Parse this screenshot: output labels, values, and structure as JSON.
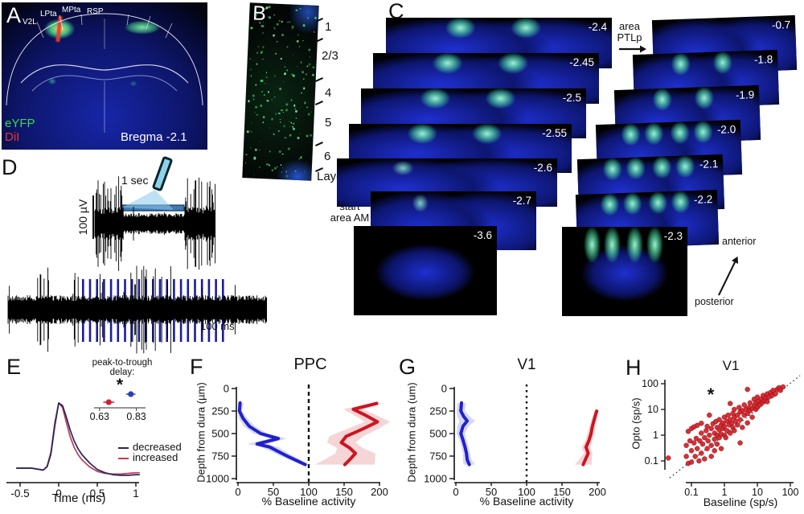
{
  "figure": {
    "panel_a": {
      "label": "A",
      "regions": [
        "V2L",
        "LPta",
        "MPta",
        "RSP"
      ],
      "legend": [
        {
          "text": "eYFP",
          "color": "#35d94f"
        },
        {
          "text": "DiI",
          "color": "#e8392e"
        }
      ],
      "caption": "Bregma -2.1"
    },
    "panel_b": {
      "label": "B",
      "layers": [
        "1",
        "2/3",
        "4",
        "5",
        "6"
      ],
      "axis_label": "Layer"
    },
    "panel_c": {
      "label": "C",
      "left_slices": [
        {
          "bregma": "-2.4",
          "signal": "strong"
        },
        {
          "bregma": "-2.45",
          "signal": "strong"
        },
        {
          "bregma": "-2.5",
          "signal": "strong"
        },
        {
          "bregma": "-2.55",
          "signal": "strong"
        },
        {
          "bregma": "-2.6",
          "signal": "weak"
        },
        {
          "bregma": "-2.7",
          "signal": "weak"
        },
        {
          "bregma": "-3.6",
          "signal": "none"
        }
      ],
      "right_slices": [
        {
          "bregma": "-0.7",
          "signal": "none"
        },
        {
          "bregma": "-1.8",
          "signal": "strong"
        },
        {
          "bregma": "-1.9",
          "signal": "strong"
        },
        {
          "bregma": "-2.0",
          "signal": "strong4"
        },
        {
          "bregma": "-2.1",
          "signal": "strong4"
        },
        {
          "bregma": "-2.2",
          "signal": "strong4"
        },
        {
          "bregma": "-2.3",
          "signal": "strong4"
        }
      ],
      "annotations": {
        "ptlp_line1": "area",
        "ptlp_line2": "PTLp",
        "am_line1": "start",
        "am_line2": "area AM",
        "anterior": "anterior",
        "posterior": "posterior"
      }
    },
    "panel_d": {
      "label": "D",
      "voltage_scalebar": "100 µV",
      "top_time_scalebar": "1 sec",
      "bottom_time_scalebar": "100 ms",
      "laser_pulse_count": 21,
      "laser_color": "#1c1c96"
    },
    "panel_e": {
      "label": "E"
    },
    "panel_f": {
      "label": "F"
    },
    "panel_g": {
      "label": "G"
    },
    "panel_h": {
      "label": "H"
    }
  },
  "chart_data": [
    {
      "id": "E",
      "type": "line",
      "xlabel": "Time (ms)",
      "xticks": [
        -0.5,
        0,
        0.5,
        1
      ],
      "series": [
        {
          "name": "decreased",
          "color": "#26265e",
          "t": [
            -0.55,
            -0.45,
            -0.35,
            -0.25,
            -0.2,
            -0.15,
            -0.1,
            -0.05,
            0,
            0.05,
            0.1,
            0.15,
            0.2,
            0.25,
            0.3,
            0.4,
            0.5,
            0.6,
            0.7,
            0.8,
            0.9,
            1.0,
            1.05
          ],
          "amp": [
            0,
            0,
            0,
            -0.02,
            -0.03,
            0.02,
            0.22,
            0.65,
            1.0,
            0.96,
            0.78,
            0.58,
            0.42,
            0.3,
            0.21,
            0.08,
            -0.02,
            -0.07,
            -0.1,
            -0.11,
            -0.11,
            -0.1,
            -0.1
          ]
        },
        {
          "name": "increased",
          "color": "#c13b52",
          "t": [
            -0.55,
            -0.45,
            -0.35,
            -0.25,
            -0.2,
            -0.15,
            -0.1,
            -0.05,
            0,
            0.05,
            0.1,
            0.15,
            0.2,
            0.25,
            0.3,
            0.4,
            0.5,
            0.6,
            0.7,
            0.8,
            0.9,
            1.0,
            1.05
          ],
          "amp": [
            0,
            0,
            0,
            -0.02,
            -0.03,
            0.03,
            0.25,
            0.7,
            1.0,
            0.93,
            0.7,
            0.48,
            0.32,
            0.21,
            0.13,
            0.02,
            -0.05,
            -0.08,
            -0.09,
            -0.09,
            -0.08,
            -0.07,
            -0.07
          ]
        }
      ],
      "inset": {
        "title_line1": "peak-to-trough",
        "title_line2": "delay:",
        "significance": "*",
        "tick_labels": [
          "0.63",
          "0.83"
        ],
        "tick_values": [
          0.63,
          0.83
        ],
        "red_point": {
          "value": 0.68,
          "err": 0.03,
          "color": "#cc2233"
        },
        "blue_point": {
          "value": 0.8,
          "err": 0.025,
          "color": "#2a3fb0"
        }
      }
    },
    {
      "id": "F",
      "type": "line-depth",
      "title": "PPC",
      "ylabel": "Depth from dura (µm)",
      "xlabel": "% Baseline activity",
      "yticks": [
        0,
        250,
        500,
        750,
        1000
      ],
      "xticks": [
        0,
        50,
        100,
        150,
        200
      ],
      "ref_line": 100,
      "series": [
        {
          "name": "decreased",
          "color": "#2020cc",
          "depth": [
            160,
            250,
            330,
            420,
            500,
            555,
            615,
            650,
            700,
            760,
            845
          ],
          "value": [
            3,
            2,
            7,
            16,
            32,
            57,
            27,
            45,
            57,
            72,
            95
          ],
          "band": [
            5,
            4,
            6,
            8,
            10,
            12,
            14,
            12,
            10,
            9,
            6
          ]
        },
        {
          "name": "increased",
          "color": "#cc1520",
          "depth": [
            165,
            230,
            300,
            370,
            450,
            530,
            600,
            660,
            720,
            790,
            845
          ],
          "value": [
            196,
            163,
            181,
            197,
            176,
            153,
            146,
            158,
            166,
            158,
            151
          ],
          "band": [
            10,
            14,
            16,
            18,
            22,
            24,
            20,
            18,
            28,
            36,
            42
          ]
        }
      ]
    },
    {
      "id": "G",
      "type": "line-depth",
      "title": "V1",
      "ylabel": "Depth from dura (um)",
      "xlabel": "% Baseline activity",
      "yticks": [
        0,
        250,
        500,
        750,
        1000
      ],
      "xticks": [
        0,
        50,
        100,
        150,
        200
      ],
      "ref_line": 100,
      "series": [
        {
          "name": "decreased",
          "color": "#2020cc",
          "depth": [
            160,
            250,
            310,
            360,
            420,
            500,
            570,
            650,
            720,
            790,
            845
          ],
          "value": [
            8,
            7,
            11,
            16,
            10,
            7,
            10,
            13,
            15,
            16,
            19
          ],
          "band": [
            6,
            6,
            9,
            11,
            8,
            6,
            5,
            5,
            5,
            6,
            8
          ]
        },
        {
          "name": "increased",
          "color": "#cc1520",
          "depth": [
            250,
            330,
            420,
            500,
            580,
            650,
            720,
            790,
            845
          ],
          "value": [
            199,
            196,
            193,
            191,
            188,
            184,
            187,
            183,
            180
          ],
          "band": [
            3,
            4,
            4,
            5,
            5,
            6,
            6,
            9,
            12
          ]
        }
      ]
    },
    {
      "id": "H",
      "type": "scatter",
      "title": "V1",
      "xlabel": "Baseline (sp/s)",
      "ylabel": "Opto (sp/s)",
      "xticks": [
        0.1,
        1,
        10,
        100
      ],
      "yticks": [
        100,
        10,
        1,
        0.1
      ],
      "log_scale": true,
      "unity_line": true,
      "significance": "*",
      "point_color": "#d41f26",
      "points": [
        [
          0.02,
          0.13
        ],
        [
          0.07,
          0.4
        ],
        [
          0.07,
          0.15
        ],
        [
          0.08,
          0.08
        ],
        [
          0.08,
          1.4
        ],
        [
          0.09,
          0.6
        ],
        [
          0.1,
          0.25
        ],
        [
          0.1,
          1.8
        ],
        [
          0.1,
          0.09
        ],
        [
          0.12,
          0.5
        ],
        [
          0.12,
          2.1
        ],
        [
          0.13,
          0.15
        ],
        [
          0.14,
          0.75
        ],
        [
          0.15,
          0.3
        ],
        [
          0.15,
          2.4
        ],
        [
          0.17,
          0.1
        ],
        [
          0.18,
          0.6
        ],
        [
          0.2,
          0.2
        ],
        [
          0.2,
          1.2
        ],
        [
          0.2,
          2.9
        ],
        [
          0.22,
          0.45
        ],
        [
          0.25,
          0.8
        ],
        [
          0.25,
          0.12
        ],
        [
          0.28,
          1.5
        ],
        [
          0.3,
          0.3
        ],
        [
          0.3,
          2.2
        ],
        [
          0.32,
          0.6
        ],
        [
          0.35,
          1
        ],
        [
          0.35,
          6
        ],
        [
          0.4,
          0.4
        ],
        [
          0.4,
          1.8
        ],
        [
          0.4,
          0.15
        ],
        [
          0.45,
          2.8
        ],
        [
          0.5,
          0.7
        ],
        [
          0.5,
          1.2
        ],
        [
          0.5,
          0.25
        ],
        [
          0.55,
          3.4
        ],
        [
          0.6,
          1
        ],
        [
          0.6,
          2
        ],
        [
          0.6,
          0.45
        ],
        [
          0.7,
          1.6
        ],
        [
          0.7,
          4
        ],
        [
          0.7,
          0.8
        ],
        [
          0.8,
          2.5
        ],
        [
          0.8,
          1.1
        ],
        [
          0.8,
          0.3
        ],
        [
          0.9,
          3
        ],
        [
          0.9,
          1.8
        ],
        [
          1,
          1
        ],
        [
          1,
          2.2
        ],
        [
          1,
          5
        ],
        [
          1.1,
          0.8
        ],
        [
          1.2,
          3.5
        ],
        [
          1.2,
          1.5
        ],
        [
          1.3,
          6
        ],
        [
          1.4,
          2.5
        ],
        [
          1.5,
          4
        ],
        [
          1.5,
          1.2
        ],
        [
          1.5,
          17
        ],
        [
          1.7,
          3
        ],
        [
          1.8,
          7
        ],
        [
          1.8,
          2
        ],
        [
          2,
          5
        ],
        [
          2,
          1.5
        ],
        [
          2,
          10
        ],
        [
          2.2,
          3.5
        ],
        [
          2.5,
          6
        ],
        [
          2.5,
          2.5
        ],
        [
          2.8,
          12
        ],
        [
          3,
          4
        ],
        [
          3,
          8
        ],
        [
          3,
          0.5
        ],
        [
          3.5,
          9
        ],
        [
          3.5,
          2
        ],
        [
          4,
          6
        ],
        [
          4,
          15
        ],
        [
          4.5,
          10
        ],
        [
          5,
          7
        ],
        [
          5,
          3
        ],
        [
          5,
          60
        ],
        [
          5.5,
          12
        ],
        [
          6,
          9
        ],
        [
          6,
          18
        ],
        [
          7,
          11
        ],
        [
          7,
          5
        ],
        [
          8,
          14
        ],
        [
          8,
          25
        ],
        [
          9,
          10
        ],
        [
          9,
          18
        ],
        [
          10,
          12
        ],
        [
          10,
          30
        ],
        [
          11,
          20
        ],
        [
          12,
          15
        ],
        [
          13,
          25
        ],
        [
          14,
          18
        ],
        [
          15,
          35
        ],
        [
          16,
          22
        ],
        [
          18,
          28
        ],
        [
          20,
          20
        ],
        [
          20,
          40
        ],
        [
          22,
          30
        ],
        [
          25,
          45
        ],
        [
          28,
          35
        ],
        [
          30,
          55
        ],
        [
          35,
          40
        ],
        [
          40,
          60
        ],
        [
          45,
          70
        ],
        [
          50,
          55
        ],
        [
          60,
          75
        ]
      ]
    }
  ]
}
